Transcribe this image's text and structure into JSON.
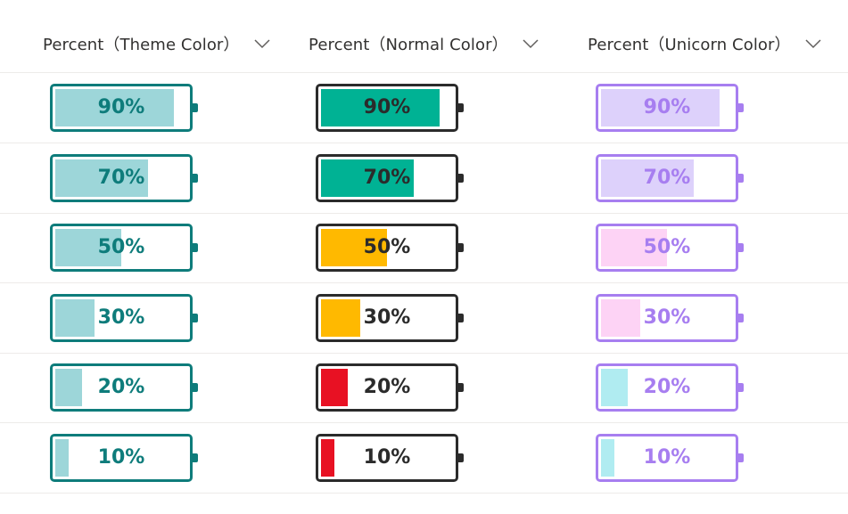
{
  "columns": [
    {
      "label": "Percent（Theme Color）",
      "chevron_icon": "chevron-down-icon"
    },
    {
      "label": "Percent（Normal Color）",
      "chevron_icon": "chevron-down-icon"
    },
    {
      "label": "Percent（Unicorn Color）",
      "chevron_icon": "chevron-down-icon"
    }
  ],
  "rows": [
    {
      "value": 90,
      "label": "90%"
    },
    {
      "value": 70,
      "label": "70%"
    },
    {
      "value": 50,
      "label": "50%"
    },
    {
      "value": 30,
      "label": "30%"
    },
    {
      "value": 20,
      "label": "20%"
    },
    {
      "value": 10,
      "label": "10%"
    }
  ],
  "colors": {
    "theme": {
      "border": "#0e7c7b",
      "fill": "#9dd6d9",
      "text": "#0e7c7b"
    },
    "normal": {
      "border": "#2b2b2b",
      "text": "#2b2b2b",
      "high": "#00b294",
      "medium": "#ffb900",
      "low": "#e81123"
    },
    "unicorn": {
      "border": "#a77ef0",
      "text": "#a77ef0",
      "high": "#ddd1fb",
      "medium": "#fdd3f5",
      "low": "#b0ecf1"
    }
  }
}
